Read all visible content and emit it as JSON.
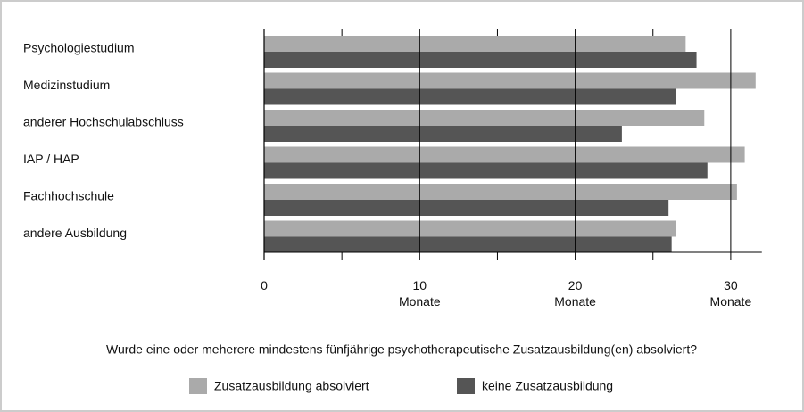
{
  "chart_data": {
    "type": "barh",
    "categories": [
      "Psychologiestudium",
      "Medizinstudium",
      "anderer Hochschulabschluss",
      "IAP / HAP",
      "Fachhochschule",
      "andere Ausbildung"
    ],
    "series": [
      {
        "name": "Zusatzausbildung absolviert",
        "color": "#aaaaaa",
        "values": [
          27.1,
          31.6,
          28.3,
          30.9,
          30.4,
          26.5
        ]
      },
      {
        "name": "keine Zusatzausbildung",
        "color": "#555555",
        "values": [
          27.8,
          26.5,
          23.0,
          28.5,
          26.0,
          26.2
        ]
      }
    ],
    "xlim": [
      0,
      32
    ],
    "xticks": [
      0,
      {
        "value": 10,
        "label": "10\nMonate"
      },
      {
        "value": 20,
        "label": "20\nMonate"
      },
      {
        "value": 30,
        "label": "30\nMonate"
      }
    ],
    "minor_xticks": [
      5,
      15,
      25
    ],
    "xlabel": "Wurde eine oder meherere mindestens fünfjährige psychotherapeutische Zusatzausbildung(en) absolviert?",
    "grid": true
  }
}
